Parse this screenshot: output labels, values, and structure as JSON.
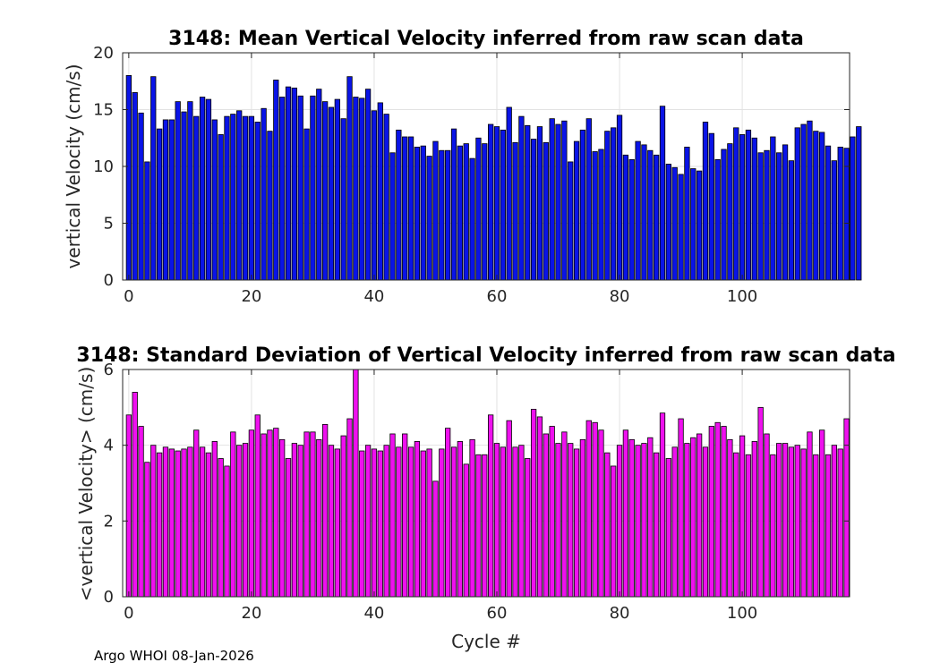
{
  "footer": "Argo WHOI 08-Jan-2026",
  "colors": {
    "top_bar": "#0a14e6",
    "bottom_bar": "#ee11ee",
    "grid": "#e2e2e2",
    "axis": "#262626"
  },
  "chart_data": [
    {
      "type": "bar",
      "title": "3148: Mean Vertical Velocity inferred from raw scan data",
      "xlabel": "",
      "ylabel": "vertical Velocity (cm/s)",
      "xlim": [
        -1,
        117.5
      ],
      "ylim": [
        0,
        20
      ],
      "xticks": [
        "0",
        "20",
        "40",
        "60",
        "80",
        "100"
      ],
      "yticks": [
        "0",
        "5",
        "10",
        "15",
        "20"
      ],
      "grid": true,
      "x_start": 0,
      "values": [
        18.0,
        16.5,
        14.7,
        10.4,
        17.9,
        13.3,
        14.1,
        14.1,
        15.7,
        14.8,
        15.7,
        14.4,
        16.1,
        15.9,
        14.1,
        12.8,
        14.4,
        14.6,
        14.9,
        14.4,
        14.4,
        13.9,
        15.1,
        13.1,
        17.6,
        16.1,
        17.0,
        16.9,
        16.2,
        13.3,
        16.2,
        16.8,
        15.7,
        15.2,
        15.9,
        14.2,
        17.9,
        16.1,
        16.0,
        16.8,
        14.9,
        15.6,
        14.6,
        11.2,
        13.2,
        12.6,
        12.6,
        11.7,
        11.8,
        10.9,
        12.2,
        11.4,
        11.4,
        13.3,
        11.8,
        12.0,
        10.7,
        12.5,
        12.0,
        13.7,
        13.5,
        13.2,
        15.2,
        12.1,
        14.4,
        13.6,
        12.4,
        13.5,
        12.1,
        14.2,
        13.7,
        14.0,
        10.4,
        12.2,
        13.2,
        14.2,
        11.3,
        11.5,
        13.1,
        13.4,
        14.5,
        11.0,
        10.6,
        12.2,
        11.9,
        11.4,
        11.0,
        15.3,
        10.2,
        9.9,
        9.3,
        11.7,
        9.8,
        9.6,
        13.9,
        12.9,
        10.6,
        11.5,
        12.0,
        13.4,
        12.8,
        13.2,
        12.5,
        11.2,
        11.4,
        12.6,
        11.2,
        11.9,
        10.5,
        13.4,
        13.7,
        14.0,
        13.1,
        13.0,
        11.8,
        10.5,
        11.7,
        11.6,
        12.6,
        13.5
      ]
    },
    {
      "type": "bar",
      "title": "3148: Standard Deviation of Vertical Velocity inferred from raw scan data",
      "xlabel": "Cycle #",
      "ylabel": "<vertical Velocity> (cm/s)",
      "xlim": [
        -1,
        117.5
      ],
      "ylim": [
        0,
        6
      ],
      "xticks": [
        "0",
        "20",
        "40",
        "60",
        "80",
        "100"
      ],
      "yticks": [
        "0",
        "2",
        "4",
        "6"
      ],
      "grid": true,
      "x_start": 0,
      "values": [
        4.8,
        5.4,
        4.5,
        3.55,
        4.0,
        3.8,
        3.95,
        3.9,
        3.85,
        3.9,
        3.95,
        4.4,
        3.95,
        3.8,
        4.1,
        3.65,
        3.45,
        4.35,
        4.0,
        4.05,
        4.4,
        4.8,
        4.3,
        4.4,
        4.45,
        4.15,
        3.65,
        4.05,
        4.0,
        4.35,
        4.35,
        4.15,
        4.55,
        4.0,
        3.9,
        4.25,
        4.7,
        6.3,
        3.85,
        4.0,
        3.9,
        3.85,
        4.0,
        4.3,
        3.95,
        4.3,
        3.95,
        4.1,
        3.85,
        3.9,
        3.05,
        3.9,
        4.45,
        3.95,
        4.1,
        3.5,
        4.15,
        3.75,
        3.75,
        4.8,
        4.05,
        3.95,
        4.65,
        3.95,
        4.0,
        3.65,
        4.95,
        4.75,
        4.3,
        4.5,
        4.05,
        4.35,
        4.05,
        3.9,
        4.15,
        4.65,
        4.6,
        4.4,
        3.8,
        3.45,
        4.0,
        4.4,
        4.15,
        4.0,
        4.05,
        4.2,
        3.8,
        4.85,
        3.65,
        3.95,
        4.7,
        4.05,
        4.2,
        4.3,
        3.95,
        4.5,
        4.6,
        4.5,
        4.15,
        3.8,
        4.25,
        3.75,
        4.1,
        5.0,
        4.3,
        3.75,
        4.05,
        4.05,
        3.95,
        4.0,
        3.9,
        4.35,
        3.75,
        4.4,
        3.75,
        4.0,
        3.9,
        4.7
      ]
    }
  ]
}
